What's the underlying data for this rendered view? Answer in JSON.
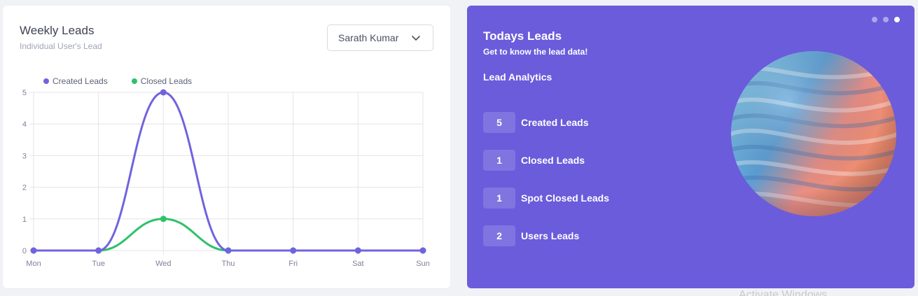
{
  "weekly": {
    "title": "Weekly Leads",
    "subtitle": "Individual User's Lead",
    "selected_user": "Sarath Kumar"
  },
  "chart_data": {
    "type": "line",
    "categories": [
      "Mon",
      "Tue",
      "Wed",
      "Thu",
      "Fri",
      "Sat",
      "Sun"
    ],
    "series": [
      {
        "name": "Created Leads",
        "values": [
          0,
          0,
          5,
          0,
          0,
          0,
          0
        ],
        "color": "#7063e0"
      },
      {
        "name": "Closed Leads",
        "values": [
          0,
          0,
          1,
          0,
          0,
          0,
          0
        ],
        "color": "#2ec26a"
      }
    ],
    "yticks": [
      "0",
      "1",
      "2",
      "3",
      "4",
      "5"
    ],
    "ylim": [
      0,
      5
    ],
    "grid": true,
    "legend": "top-left",
    "smooth": true
  },
  "today": {
    "title": "Todays Leads",
    "subtitle": "Get to know the lead data!",
    "section": "Lead Analytics",
    "stats": [
      {
        "value": "5",
        "label": "Created Leads"
      },
      {
        "value": "1",
        "label": "Closed Leads"
      },
      {
        "value": "1",
        "label": "Spot Closed Leads"
      },
      {
        "value": "2",
        "label": "Users Leads"
      }
    ],
    "accent": "#6a5cdb",
    "slide_active": 3
  },
  "watermark": "Activate Windows"
}
